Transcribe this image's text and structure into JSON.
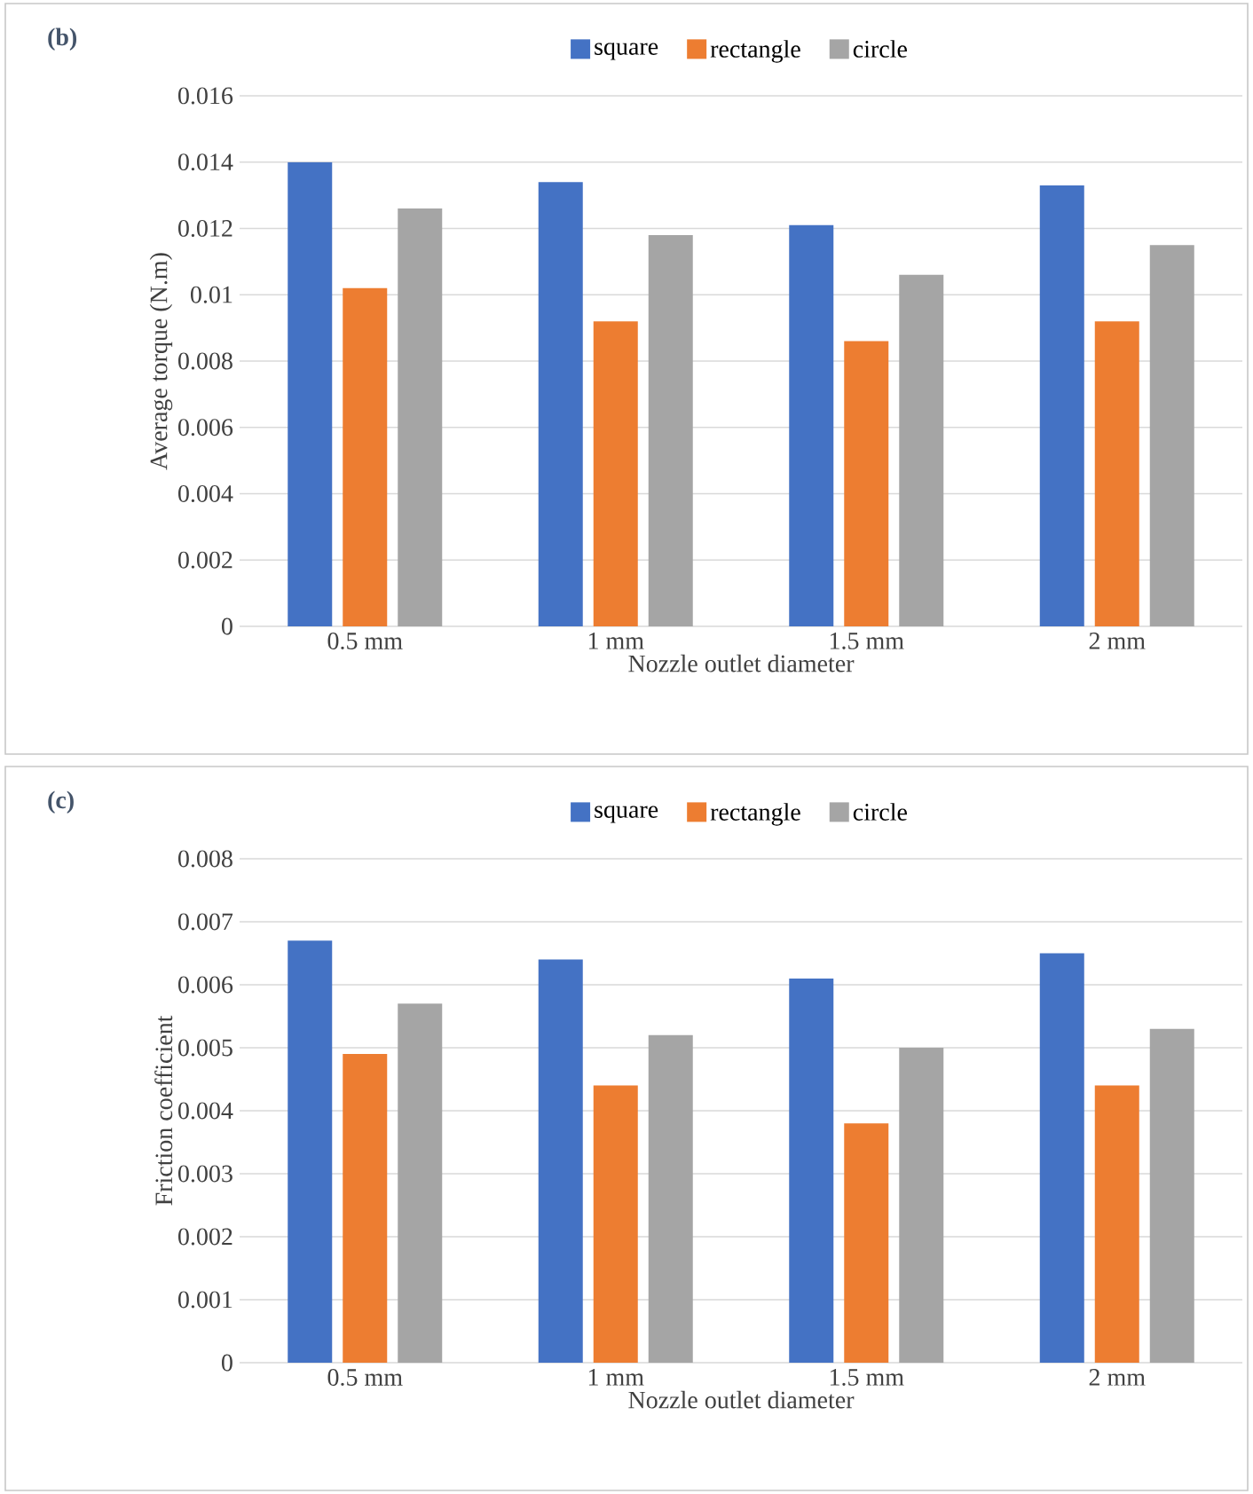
{
  "chart_data": [
    {
      "type": "bar",
      "title": "(b)",
      "xlabel": "Nozzle outlet diameter",
      "ylabel": "Average torque (N.m)",
      "categories": [
        "0.5 mm",
        "1 mm",
        "1.5 mm",
        "2 mm"
      ],
      "series": [
        {
          "name": "square",
          "color": "#4472c4",
          "values": [
            0.014,
            0.0134,
            0.0121,
            0.0133
          ]
        },
        {
          "name": "rectangle",
          "color": "#ed7d31",
          "values": [
            0.0102,
            0.0092,
            0.0086,
            0.0092
          ]
        },
        {
          "name": "circle",
          "color": "#a5a5a5",
          "values": [
            0.0126,
            0.0118,
            0.0106,
            0.0115
          ]
        }
      ],
      "ylim": [
        0,
        0.016
      ],
      "yticks": [
        0,
        0.002,
        0.004,
        0.006,
        0.008,
        0.01,
        0.012,
        0.014,
        0.016
      ],
      "grid": "y",
      "legend": "top"
    },
    {
      "type": "bar",
      "title": "(c)",
      "xlabel": "Nozzle outlet diameter",
      "ylabel": "Friction coefficient",
      "categories": [
        "0.5 mm",
        "1 mm",
        "1.5 mm",
        "2 mm"
      ],
      "series": [
        {
          "name": "square",
          "color": "#4472c4",
          "values": [
            0.0067,
            0.0064,
            0.0061,
            0.0065
          ]
        },
        {
          "name": "rectangle",
          "color": "#ed7d31",
          "values": [
            0.0049,
            0.0044,
            0.0038,
            0.0044
          ]
        },
        {
          "name": "circle",
          "color": "#a5a5a5",
          "values": [
            0.0057,
            0.0052,
            0.005,
            0.0053
          ]
        }
      ],
      "ylim": [
        0,
        0.008
      ],
      "yticks": [
        0,
        0.001,
        0.002,
        0.003,
        0.004,
        0.005,
        0.006,
        0.007,
        0.008
      ],
      "grid": "y",
      "legend": "top"
    }
  ]
}
